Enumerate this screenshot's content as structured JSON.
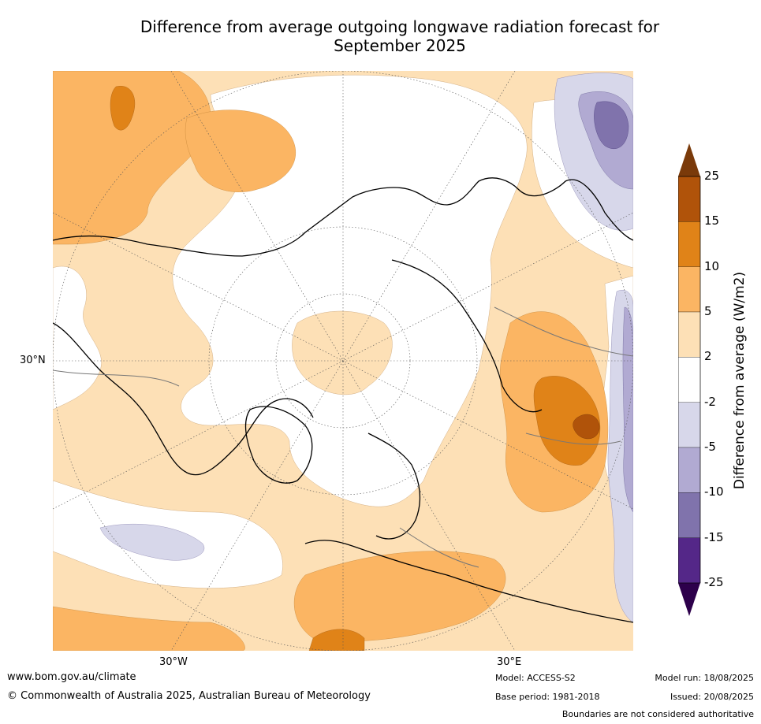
{
  "title_line1": "Difference from average outgoing longwave radiation forecast for",
  "title_line2": "September 2025",
  "axis_labels": {
    "lat": "30°N",
    "lon_west": "30°W",
    "lon_east": "30°E"
  },
  "colorbar": {
    "title": "Difference from average (W/m2)",
    "ticks": [
      "25",
      "15",
      "10",
      "5",
      "2",
      "-2",
      "-5",
      "-10",
      "-15",
      "-25"
    ],
    "colors": [
      "#7a3a0a",
      "#b0530a",
      "#e08318",
      "#fbb563",
      "#fde0b6",
      "#ffffff",
      "#d7d7ea",
      "#b1aad2",
      "#8073ac",
      "#542788",
      "#2d004b"
    ]
  },
  "footer": {
    "url": "www.bom.gov.au/climate",
    "copyright": "© Commonwealth of Australia 2025, Australian Bureau of Meteorology",
    "model": "Model: ACCESS-S2",
    "base_period": "Base period: 1981-2018",
    "model_run": "Model run: 18/08/2025",
    "issued": "Issued: 20/08/2025",
    "disclaimer": "Boundaries are not considered authoritative"
  }
}
